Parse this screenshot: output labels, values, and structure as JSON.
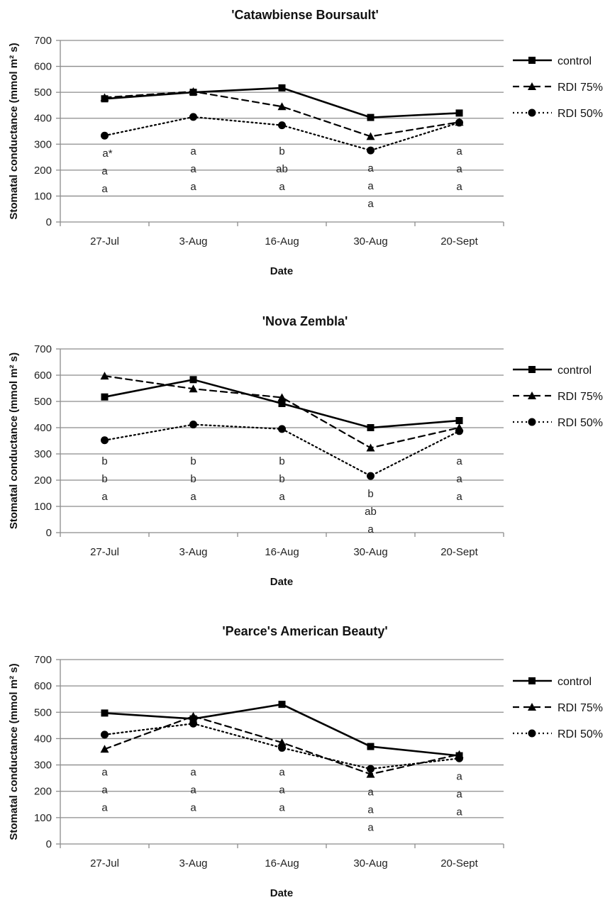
{
  "chart_data": [
    {
      "type": "line",
      "title": "'Catawbiense Boursault'",
      "xlabel": "Date",
      "ylabel": "Stomatal conductance (mmol m² s)",
      "ylim": [
        0,
        700
      ],
      "yticks": [
        "0",
        "100",
        "200",
        "300",
        "400",
        "500",
        "600",
        "700"
      ],
      "categories": [
        "27-Jul",
        "3-Aug",
        "16-Aug",
        "30-Aug",
        "20-Sept"
      ],
      "grid": true,
      "legend": "right",
      "series": [
        {
          "name": "control",
          "values": [
            475,
            500,
            517,
            403,
            420
          ]
        },
        {
          "name": "RDI 75%",
          "values": [
            480,
            503,
            445,
            330,
            385
          ]
        },
        {
          "name": "RDI 50%",
          "values": [
            333,
            405,
            373,
            276,
            383
          ]
        }
      ],
      "annotations": [
        [
          "a*",
          "a",
          "a"
        ],
        [
          "a",
          "a",
          "a"
        ],
        [
          "b",
          "ab",
          "a"
        ],
        [
          "a",
          "a",
          "a"
        ],
        [
          "a",
          "a",
          "a"
        ]
      ]
    },
    {
      "type": "line",
      "title": "'Nova Zembla'",
      "xlabel": "Date",
      "ylabel": "Stomatal conductance (mmol m² s)",
      "ylim": [
        0,
        700
      ],
      "yticks": [
        "0",
        "100",
        "200",
        "300",
        "400",
        "500",
        "600",
        "700"
      ],
      "categories": [
        "27-Jul",
        "3-Aug",
        "16-Aug",
        "30-Aug",
        "20-Sept"
      ],
      "grid": true,
      "legend": "right",
      "series": [
        {
          "name": "control",
          "values": [
            517,
            583,
            492,
            400,
            427
          ]
        },
        {
          "name": "RDI 75%",
          "values": [
            597,
            548,
            515,
            323,
            400
          ]
        },
        {
          "name": "RDI 50%",
          "values": [
            352,
            412,
            395,
            216,
            387
          ]
        }
      ],
      "annotations": [
        [
          "b",
          "b",
          "a"
        ],
        [
          "b",
          "b",
          "a"
        ],
        [
          "b",
          "b",
          "a"
        ],
        [
          "b",
          "ab",
          "a"
        ],
        [
          "a",
          "a",
          "a"
        ]
      ]
    },
    {
      "type": "line",
      "title": "'Pearce's American Beauty'",
      "xlabel": "Date",
      "ylabel": "Stomatal conductance (mmol m² s)",
      "ylim": [
        0,
        700
      ],
      "yticks": [
        "0",
        "100",
        "200",
        "300",
        "400",
        "500",
        "600",
        "700"
      ],
      "categories": [
        "27-Jul",
        "3-Aug",
        "16-Aug",
        "30-Aug",
        "20-Sept"
      ],
      "grid": true,
      "legend": "right",
      "series": [
        {
          "name": "control",
          "values": [
            497,
            475,
            530,
            370,
            335
          ]
        },
        {
          "name": "RDI 75%",
          "values": [
            360,
            485,
            385,
            265,
            340
          ]
        },
        {
          "name": "RDI 50%",
          "values": [
            415,
            457,
            365,
            285,
            325
          ]
        }
      ],
      "annotations": [
        [
          "a",
          "a",
          "a"
        ],
        [
          "a",
          "a",
          "a"
        ],
        [
          "a",
          "a",
          "a"
        ],
        [
          "a",
          "a",
          "a"
        ],
        [
          "a",
          "a",
          "a"
        ]
      ]
    }
  ],
  "style": {
    "line_color": "#000000",
    "grid_color": "#8c8c8c",
    "axis_color": "#8c8c8c"
  }
}
